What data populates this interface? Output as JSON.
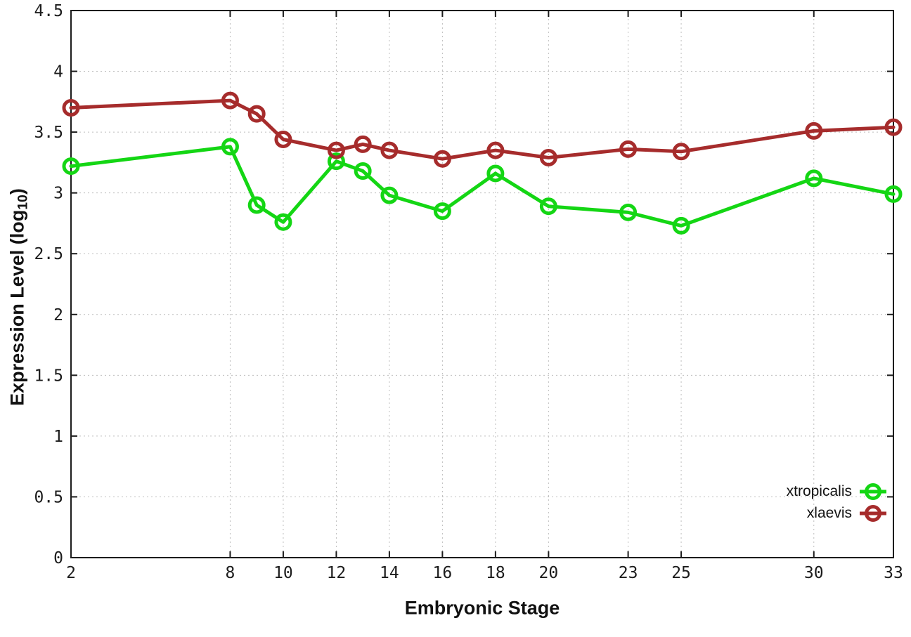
{
  "chart_data": {
    "type": "line",
    "title": "",
    "xlabel": "Embryonic Stage",
    "ylabel": "Expression Level (log10)",
    "xlim": [
      2,
      33
    ],
    "ylim": [
      0,
      4.5
    ],
    "grid": true,
    "legend_position": "bottom-right inside plot",
    "x": [
      2,
      8,
      9,
      10,
      12,
      13,
      14,
      16,
      18,
      20,
      23,
      25,
      30,
      33
    ],
    "xticks": [
      2,
      8,
      10,
      12,
      14,
      16,
      18,
      20,
      23,
      25,
      30,
      33
    ],
    "yticks": [
      0,
      0.5,
      1,
      1.5,
      2,
      2.5,
      3,
      3.5,
      4,
      4.5
    ],
    "series": [
      {
        "name": "xtropicalis",
        "color": "#14d614",
        "marker": "open-circle",
        "values": [
          3.22,
          3.38,
          2.9,
          2.76,
          3.26,
          3.18,
          2.98,
          2.85,
          3.16,
          2.89,
          2.84,
          2.73,
          3.12,
          2.99
        ]
      },
      {
        "name": "xlaevis",
        "color": "#a62c2c",
        "marker": "open-circle",
        "values": [
          3.7,
          3.76,
          3.65,
          3.44,
          3.35,
          3.4,
          3.35,
          3.28,
          3.35,
          3.29,
          3.36,
          3.34,
          3.51,
          3.54
        ]
      }
    ]
  },
  "axes": {
    "x_title": "Embryonic Stage",
    "y_title_prefix": "Expression Level (log",
    "y_title_sub": "10",
    "y_title_suffix": ")"
  },
  "legend": {
    "items": [
      {
        "label": "xtropicalis",
        "color": "#14d614"
      },
      {
        "label": "xlaevis",
        "color": "#a62c2c"
      }
    ]
  },
  "style": {
    "background": "#ffffff",
    "grid_color": "#bdbdbd",
    "axis_color": "#1c1c1c"
  }
}
